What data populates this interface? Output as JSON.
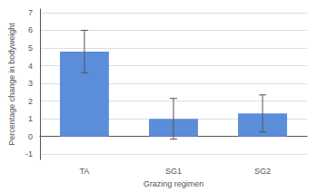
{
  "chart_data": {
    "type": "bar",
    "categories": [
      "TA",
      "SG1",
      "SG2"
    ],
    "values": [
      4.8,
      1.0,
      1.3
    ],
    "errors": [
      1.2,
      1.15,
      1.05
    ],
    "color": "#5b8dd9",
    "xlabel": "Grazing regimen",
    "ylabel": "Percentage change in bodyweight",
    "ylim": [
      -1.3,
      7.2
    ],
    "yticks": [
      -1,
      0,
      1,
      2,
      3,
      4,
      5,
      6,
      7
    ],
    "grid": true
  }
}
